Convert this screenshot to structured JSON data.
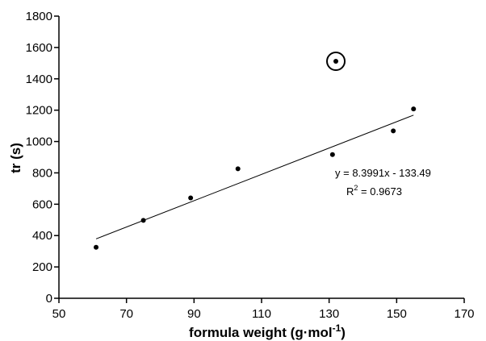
{
  "chart_data": {
    "type": "scatter",
    "xlabel": "formula weight (g·mol",
    "xlabel_sup": "-1",
    "xlabel_end": ")",
    "ylabel": "tr (s)",
    "xlim": [
      50,
      170
    ],
    "ylim": [
      0,
      1800
    ],
    "xticks": [
      50,
      70,
      90,
      110,
      130,
      150,
      170
    ],
    "yticks": [
      0,
      200,
      400,
      600,
      800,
      1000,
      1200,
      1400,
      1600,
      1800
    ],
    "grid": false,
    "legend": "none",
    "points": [
      {
        "x": 61,
        "y": 325
      },
      {
        "x": 75,
        "y": 497
      },
      {
        "x": 89,
        "y": 640
      },
      {
        "x": 103,
        "y": 826
      },
      {
        "x": 131,
        "y": 917
      },
      {
        "x": 149,
        "y": 1068
      },
      {
        "x": 155,
        "y": 1208
      }
    ],
    "outlier": {
      "x": 132,
      "y": 1512,
      "circled": true
    },
    "trendline": {
      "slope": 8.3991,
      "intercept": -133.49,
      "x_range": [
        61,
        155
      ],
      "equation": "y = 8.3991x - 133.49",
      "r2_prefix": "R",
      "r2_sup": "2",
      "r2_value": " = 0.9673"
    },
    "colors": {
      "marker": "#000000",
      "line": "#000000",
      "axis": "#000000"
    }
  }
}
